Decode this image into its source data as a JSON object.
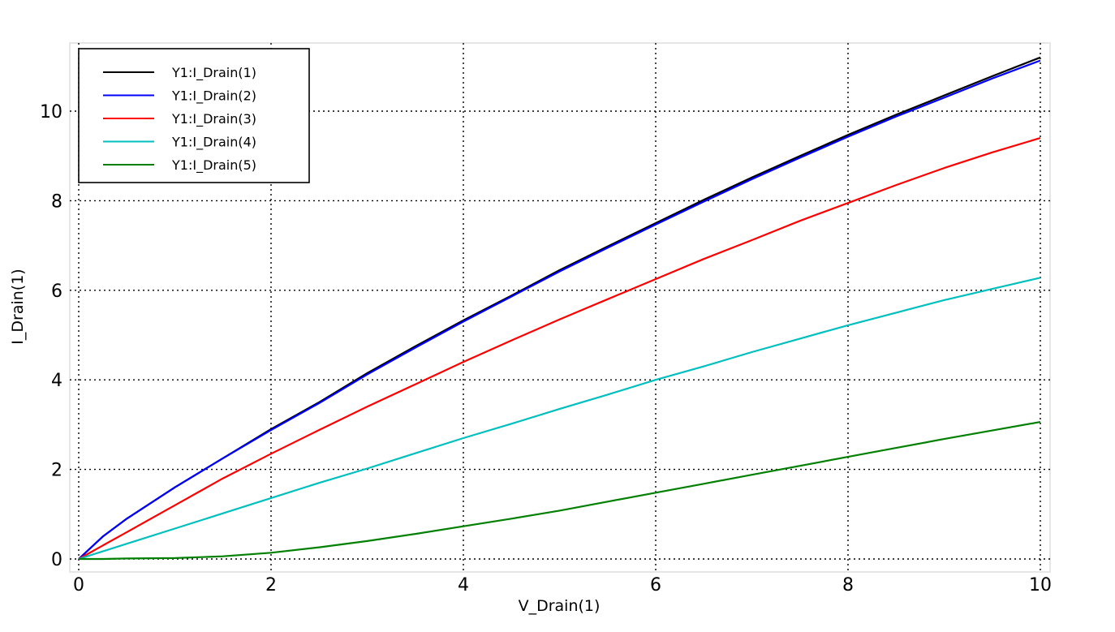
{
  "chart_data": {
    "type": "line",
    "title": "",
    "xlabel": "V_Drain(1)",
    "ylabel": "I_Drain(1)",
    "xlim": [
      0,
      10
    ],
    "ylim": [
      0,
      11.5
    ],
    "xticks": [
      "0",
      "2",
      "4",
      "6",
      "8",
      "10"
    ],
    "yticks": [
      "0",
      "2",
      "4",
      "6",
      "8",
      "10"
    ],
    "grid": true,
    "legend_position": "top-left",
    "x": [
      0,
      0.25,
      0.5,
      1,
      1.5,
      2,
      2.5,
      3,
      3.5,
      4,
      4.5,
      5,
      5.5,
      6,
      6.5,
      7,
      7.5,
      8,
      8.5,
      9,
      9.5,
      10
    ],
    "series": [
      {
        "name": "Y1:I_Drain(1)",
        "color": "#000000",
        "values": [
          0,
          0.5,
          0.9,
          1.6,
          2.25,
          2.9,
          3.5,
          4.15,
          4.75,
          5.33,
          5.88,
          6.45,
          6.98,
          7.5,
          8.02,
          8.52,
          9.0,
          9.47,
          9.92,
          10.35,
          10.78,
          11.2
        ]
      },
      {
        "name": "Y1:I_Drain(2)",
        "color": "#0000ff",
        "values": [
          0,
          0.5,
          0.9,
          1.6,
          2.25,
          2.88,
          3.48,
          4.12,
          4.72,
          5.3,
          5.86,
          6.42,
          6.95,
          7.47,
          7.98,
          8.48,
          8.96,
          9.43,
          9.88,
          10.3,
          10.73,
          11.13
        ]
      },
      {
        "name": "Y1:I_Drain(3)",
        "color": "#ff0000",
        "values": [
          0,
          0.3,
          0.6,
          1.2,
          1.8,
          2.35,
          2.88,
          3.4,
          3.9,
          4.4,
          4.88,
          5.35,
          5.8,
          6.25,
          6.7,
          7.12,
          7.55,
          7.95,
          8.35,
          8.73,
          9.08,
          9.4
        ]
      },
      {
        "name": "Y1:I_Drain(4)",
        "color": "#00bfbf",
        "values": [
          0,
          0.17,
          0.34,
          0.68,
          1.02,
          1.36,
          1.7,
          2.02,
          2.36,
          2.7,
          3.02,
          3.35,
          3.67,
          4.0,
          4.3,
          4.62,
          4.92,
          5.22,
          5.5,
          5.78,
          6.03,
          6.28
        ]
      },
      {
        "name": "Y1:I_Drain(5)",
        "color": "#008000",
        "values": [
          0,
          0.0,
          0.01,
          0.02,
          0.06,
          0.14,
          0.26,
          0.4,
          0.56,
          0.73,
          0.9,
          1.08,
          1.28,
          1.48,
          1.68,
          1.88,
          2.08,
          2.28,
          2.48,
          2.68,
          2.87,
          3.06
        ]
      }
    ]
  }
}
